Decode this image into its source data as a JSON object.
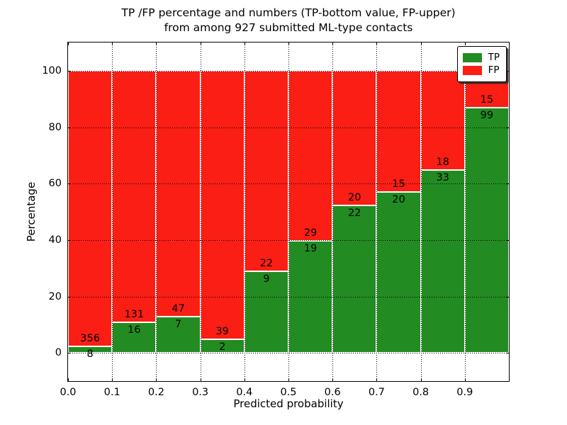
{
  "chart_data": {
    "type": "bar",
    "stacked": true,
    "normalized_to_percent": true,
    "title": "TP /FP percentage and numbers (TP-bottom value, FP-upper)\nfrom among 927 submitted ML-type contacts",
    "title_line1": "TP /FP percentage and numbers (TP-bottom value, FP-upper)",
    "title_line2": "from among 927 submitted ML-type contacts",
    "total_contacts": 927,
    "xlabel": "Predicted probability",
    "ylabel": "Percentage",
    "x_tick_labels": [
      "0.0",
      "0.1",
      "0.2",
      "0.3",
      "0.4",
      "0.5",
      "0.6",
      "0.7",
      "0.8",
      "0.9"
    ],
    "x_bin_width": 0.1,
    "xlim": [
      0.0,
      1.0
    ],
    "y_ticks": [
      0,
      20,
      40,
      60,
      80,
      100
    ],
    "ylim": [
      -10,
      110
    ],
    "grid": "dotted",
    "bar_edge_color": "#ffffff",
    "series": [
      {
        "name": "TP",
        "color": "#228c22",
        "values": [
          8,
          16,
          7,
          2,
          9,
          19,
          22,
          20,
          33,
          99
        ]
      },
      {
        "name": "FP",
        "color": "#fa1e14",
        "values": [
          356,
          131,
          47,
          39,
          22,
          29,
          20,
          15,
          18,
          15
        ]
      }
    ],
    "tp_percent_by_bin": [
      2.2,
      10.9,
      13.0,
      4.9,
      29.0,
      39.6,
      52.4,
      57.1,
      64.7,
      86.8
    ],
    "legend": {
      "position": "upper right",
      "entries": [
        "TP",
        "FP"
      ]
    }
  }
}
